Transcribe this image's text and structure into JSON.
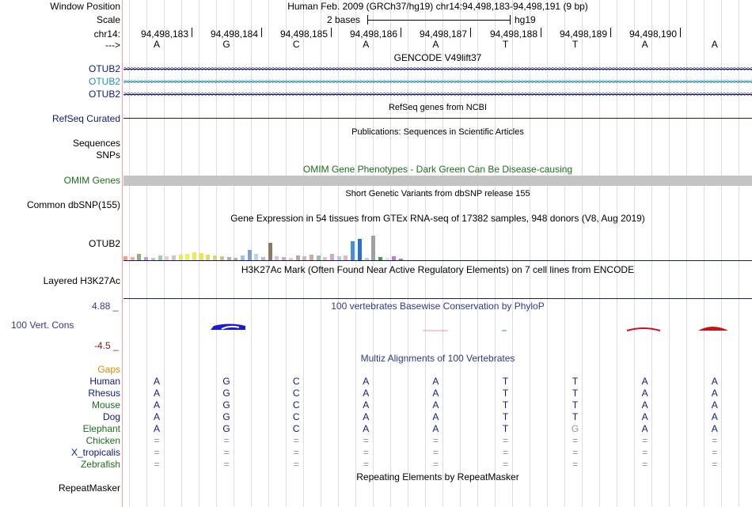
{
  "header": {
    "window_position_label": "Window Position",
    "window_position_value": "Human Feb. 2009 (GRCh37/hg19)   chr14:94,498,183-94,498,191 (9 bp)",
    "scale_label": "Scale",
    "scale_value": "2 bases",
    "scale_assembly": "hg19",
    "chrom_label": "chr14:",
    "strand_label": "--->",
    "positions": [
      "94,498,183",
      "94,498,184",
      "94,498,185",
      "94,498,186",
      "94,498,187",
      "94,498,188",
      "94,498,189",
      "94,498,190"
    ],
    "bases": [
      "A",
      "G",
      "C",
      "A",
      "A",
      "T",
      "T",
      "A",
      "A"
    ]
  },
  "tracks": {
    "gencode": {
      "title": "GENCODE V49lift37",
      "items": [
        {
          "label": "OTUB2",
          "color": "#0f1a7a"
        },
        {
          "label": "OTUB2",
          "color": "#1f8fb5"
        },
        {
          "label": "OTUB2",
          "color": "#0f1a7a"
        }
      ]
    },
    "refseq": {
      "title": "RefSeq genes from NCBI",
      "label": "RefSeq Curated",
      "color": "#0f1a7a"
    },
    "publications": {
      "title": "Publications: Sequences in Scientific Articles",
      "labels": [
        "Sequences",
        "SNPs"
      ]
    },
    "omim": {
      "title": "OMIM Gene Phenotypes - Dark Green Can Be Disease-causing",
      "label": "OMIM Genes",
      "color": "#1f6b1f",
      "bar_color": "#c4c4c4"
    },
    "dbsnp": {
      "title": "Short Genetic Variants from dbSNP release 155",
      "label": "Common dbSNP(155)"
    },
    "gtex": {
      "title": "Gene Expression in 54 tissues from GTEx RNA-seq of 17382 samples, 948 donors (V8, Aug 2019)",
      "label": "OTUB2"
    },
    "h3k27ac": {
      "title": "H3K27Ac Mark (Often Found Near Active Regulatory Elements) on 7 cell lines from ENCODE",
      "label": "Layered H3K27Ac"
    },
    "phylop": {
      "title": "100 vertebrates Basewise Conservation by PhyloP",
      "label": "100 Vert. Cons",
      "max": "4.88 _",
      "min": "-4.5 _",
      "color": "#2e3a8c",
      "min_color": "#8b1a1a"
    },
    "multiz": {
      "title": "Multiz Alignments of 100 Vertebrates",
      "gaps_label": "Gaps",
      "species": [
        {
          "name": "Human",
          "color": "#0f1a7a",
          "seq": [
            "A",
            "G",
            "C",
            "A",
            "A",
            "T",
            "T",
            "A",
            "A"
          ]
        },
        {
          "name": "Rhesus",
          "color": "#0f1a7a",
          "seq": [
            "A",
            "G",
            "C",
            "A",
            "A",
            "T",
            "T",
            "A",
            "A"
          ]
        },
        {
          "name": "Mouse",
          "color": "#1f6b1f",
          "seq": [
            "A",
            "G",
            "C",
            "A",
            "A",
            "T",
            "T",
            "A",
            "A"
          ]
        },
        {
          "name": "Dog",
          "color": "#0f1a7a",
          "seq": [
            "A",
            "G",
            "C",
            "A",
            "A",
            "T",
            "T",
            "A",
            "A"
          ]
        },
        {
          "name": "Elephant",
          "color": "#1f6b1f",
          "seq": [
            "A",
            "G",
            "C",
            "A",
            "A",
            "T",
            "G",
            "A",
            "A"
          ]
        },
        {
          "name": "Chicken",
          "color": "#1f6b1f",
          "seq": [
            "=",
            "=",
            "=",
            "=",
            "=",
            "=",
            "=",
            "=",
            "="
          ]
        },
        {
          "name": "X_tropicalis",
          "color": "#0f1a7a",
          "seq": [
            "=",
            "=",
            "=",
            "=",
            "=",
            "=",
            "=",
            "=",
            "="
          ]
        },
        {
          "name": "Zebrafish",
          "color": "#1f6b1f",
          "seq": [
            "=",
            "=",
            "=",
            "=",
            "=",
            "=",
            "=",
            "=",
            "="
          ]
        }
      ]
    },
    "repeatmasker": {
      "title": "Repeating Elements by RepeatMasker",
      "label": "RepeatMasker"
    }
  },
  "colors": {
    "gaps_label": "#d98c00",
    "track_title": "#000000"
  }
}
